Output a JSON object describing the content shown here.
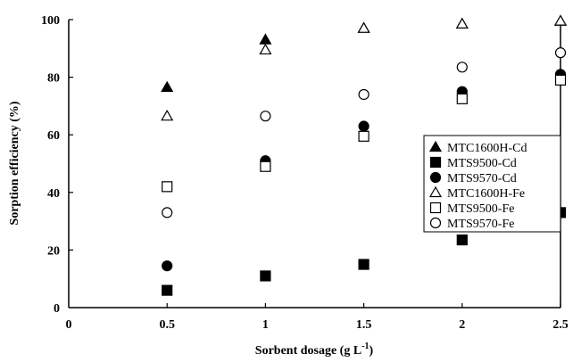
{
  "chart_data": {
    "type": "scatter",
    "xlabel": "Sorbent dosage (g L",
    "xlabel_sup": "-1",
    "xlabel_end": ")",
    "ylabel": "Sorption efficiency (%)",
    "xlim": [
      0,
      2.5
    ],
    "ylim": [
      0,
      100
    ],
    "x_ticks": [
      0,
      0.5,
      1,
      1.5,
      2,
      2.5
    ],
    "y_ticks": [
      0,
      20,
      40,
      60,
      80,
      100
    ],
    "x_tick_labels": [
      "0",
      "0.5",
      "1",
      "1.5",
      "2",
      "2.5"
    ],
    "y_tick_labels": [
      "0",
      "20",
      "40",
      "60",
      "80",
      "100"
    ],
    "grid": false,
    "legend_position": "right",
    "series": [
      {
        "name": "MTC1600H-Cd",
        "marker": "triangle",
        "fill": "#000000",
        "x": [
          0.5,
          1,
          1.5,
          2,
          2.5
        ],
        "y": [
          76.5,
          93,
          97,
          98.5,
          99.5
        ]
      },
      {
        "name": "MTS9500-Cd",
        "marker": "square",
        "fill": "#000000",
        "x": [
          0.5,
          1,
          1.5,
          2,
          2.5
        ],
        "y": [
          6,
          11,
          15,
          23.5,
          33
        ]
      },
      {
        "name": "MTS9570-Cd",
        "marker": "circle",
        "fill": "#000000",
        "x": [
          0.5,
          1,
          1.5,
          2,
          2.5
        ],
        "y": [
          14.5,
          51,
          63,
          75,
          81
        ]
      },
      {
        "name": "MTC1600H-Fe",
        "marker": "triangle",
        "fill": "#ffffff",
        "x": [
          0.5,
          1,
          1.5,
          2,
          2.5
        ],
        "y": [
          66.5,
          89.5,
          97,
          98.5,
          99.5
        ]
      },
      {
        "name": "MTS9500-Fe",
        "marker": "square",
        "fill": "#ffffff",
        "x": [
          0.5,
          1,
          1.5,
          2,
          2.5
        ],
        "y": [
          42,
          49,
          59.5,
          72.5,
          79
        ]
      },
      {
        "name": "MTS9570-Fe",
        "marker": "circle",
        "fill": "#ffffff",
        "x": [
          0.5,
          1,
          1.5,
          2,
          2.5
        ],
        "y": [
          33,
          66.5,
          74,
          83.5,
          88.5
        ]
      }
    ]
  }
}
